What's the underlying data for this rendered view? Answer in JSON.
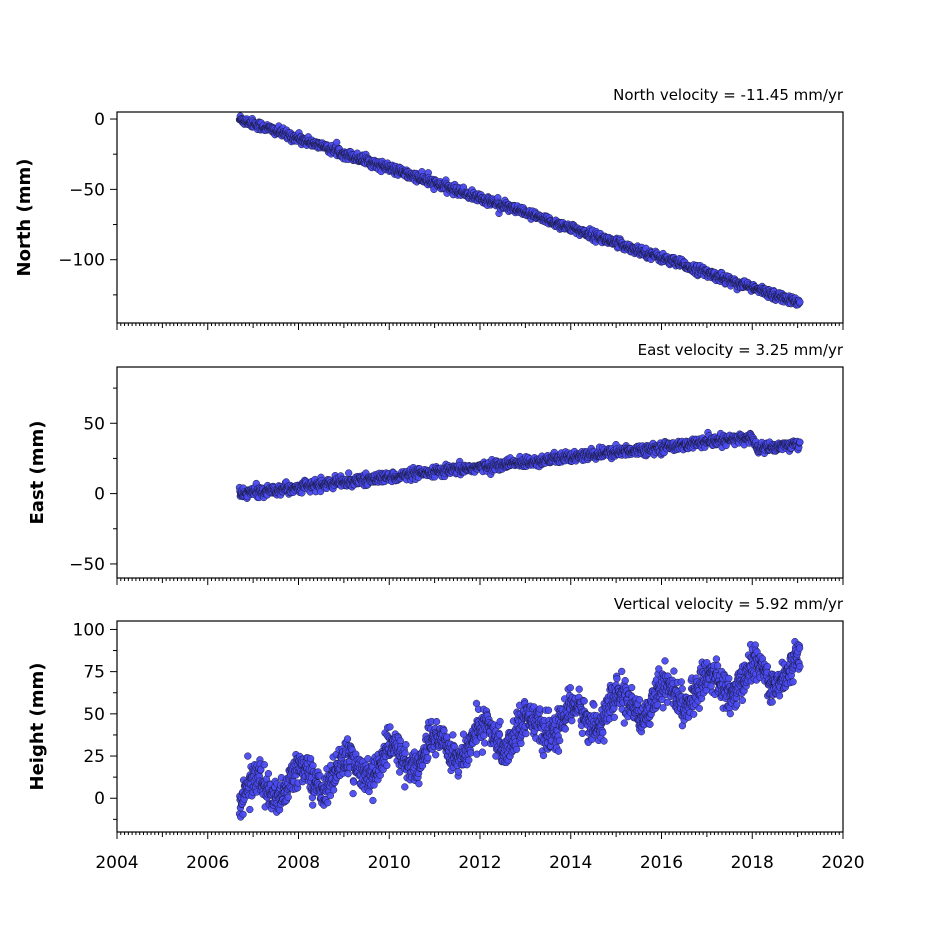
{
  "chart_data": [
    {
      "type": "scatter",
      "ylabel": "North (mm)",
      "annotation": "North velocity = -11.45 mm/yr",
      "xlim": [
        2004,
        2020
      ],
      "ylim": [
        -145,
        5
      ],
      "yticks": [
        0,
        -50,
        -100
      ],
      "ytick_labels": [
        "0",
        "−50",
        "−100"
      ],
      "velocity_mm_per_yr": -11.45,
      "x_start": 2006.7,
      "x_end": 2019.05,
      "approx_trend": [
        [
          2006.7,
          0
        ],
        [
          2019.05,
          -131
        ]
      ],
      "point_color": "#4a4af0"
    },
    {
      "type": "scatter",
      "ylabel": "East (mm)",
      "annotation": "East velocity = 3.25 mm/yr",
      "xlim": [
        2004,
        2020
      ],
      "ylim": [
        -60,
        90
      ],
      "yticks": [
        50,
        0,
        -50
      ],
      "ytick_labels": [
        "50",
        "0",
        "−50"
      ],
      "velocity_mm_per_yr": 3.25,
      "x_start": 2006.7,
      "x_end": 2019.05,
      "approx_trend": [
        [
          2006.7,
          0
        ],
        [
          2018.0,
          40
        ],
        [
          2018.1,
          32
        ],
        [
          2019.05,
          35
        ]
      ],
      "point_color": "#4a4af0"
    },
    {
      "type": "scatter",
      "ylabel": "Height (mm)",
      "annotation": "Vertical velocity = 5.92 mm/yr",
      "xlim": [
        2004,
        2020
      ],
      "ylim": [
        -20,
        105
      ],
      "yticks": [
        100,
        75,
        50,
        25,
        0
      ],
      "ytick_labels": [
        "100",
        "75",
        "50",
        "25",
        "0"
      ],
      "velocity_mm_per_yr": 5.92,
      "x_start": 2006.7,
      "x_end": 2019.05,
      "approx_trend": [
        [
          2006.7,
          2
        ],
        [
          2019.05,
          78
        ]
      ],
      "seasonal_amplitude_mm": 8,
      "point_color": "#4a4af0"
    }
  ],
  "xaxis": {
    "ticks": [
      2004,
      2006,
      2008,
      2010,
      2012,
      2014,
      2016,
      2018,
      2020
    ],
    "tick_labels": [
      "2004",
      "2006",
      "2008",
      "2010",
      "2012",
      "2014",
      "2016",
      "2018",
      "2020"
    ]
  }
}
